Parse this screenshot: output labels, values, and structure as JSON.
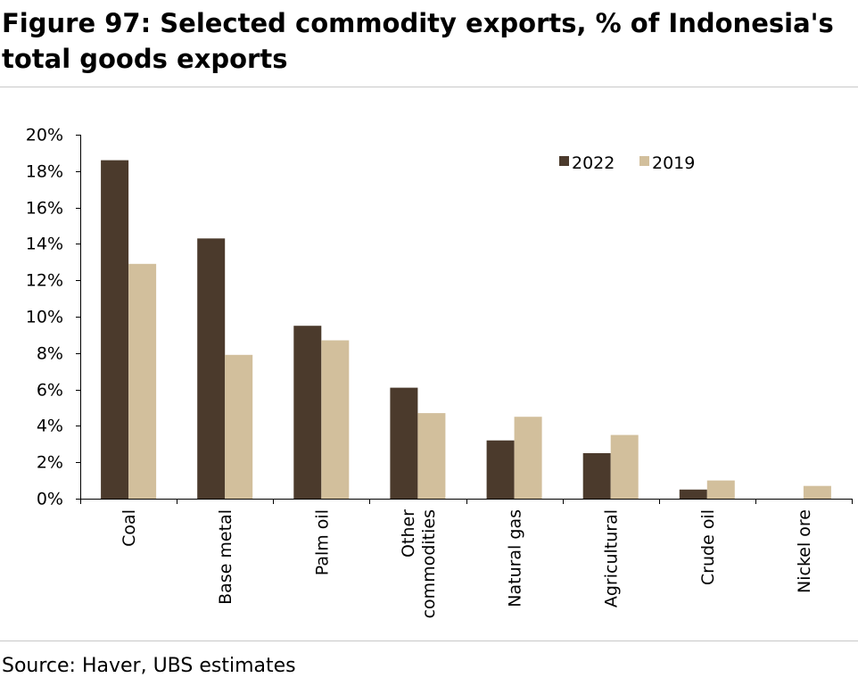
{
  "title": "Figure 97: Selected commodity exports, % of Indonesia's total goods exports",
  "source": "Source: Haver, UBS estimates",
  "colors": {
    "2022": "#4b3a2c",
    "2019": "#d2bf9c"
  },
  "chart_data": {
    "type": "bar",
    "categories": [
      "Coal",
      "Base metal",
      "Palm oil",
      "Other commodities",
      "Natural gas",
      "Agricultural",
      "Crude oil",
      "Nickel ore"
    ],
    "category_lines": [
      [
        "Coal"
      ],
      [
        "Base metal"
      ],
      [
        "Palm oil"
      ],
      [
        "Other",
        "commodities"
      ],
      [
        "Natural gas"
      ],
      [
        "Agricultural"
      ],
      [
        "Crude oil"
      ],
      [
        "Nickel ore"
      ]
    ],
    "series": [
      {
        "name": "2022",
        "values": [
          18.6,
          14.3,
          9.5,
          6.1,
          3.2,
          2.5,
          0.5,
          0.0
        ]
      },
      {
        "name": "2019",
        "values": [
          12.9,
          7.9,
          8.7,
          4.7,
          4.5,
          3.5,
          1.0,
          0.7
        ]
      }
    ],
    "ylim": [
      0,
      20
    ],
    "yticks": [
      "0%",
      "2%",
      "4%",
      "6%",
      "8%",
      "10%",
      "12%",
      "14%",
      "16%",
      "18%",
      "20%"
    ],
    "legend_position": "top-right",
    "grid": false
  }
}
